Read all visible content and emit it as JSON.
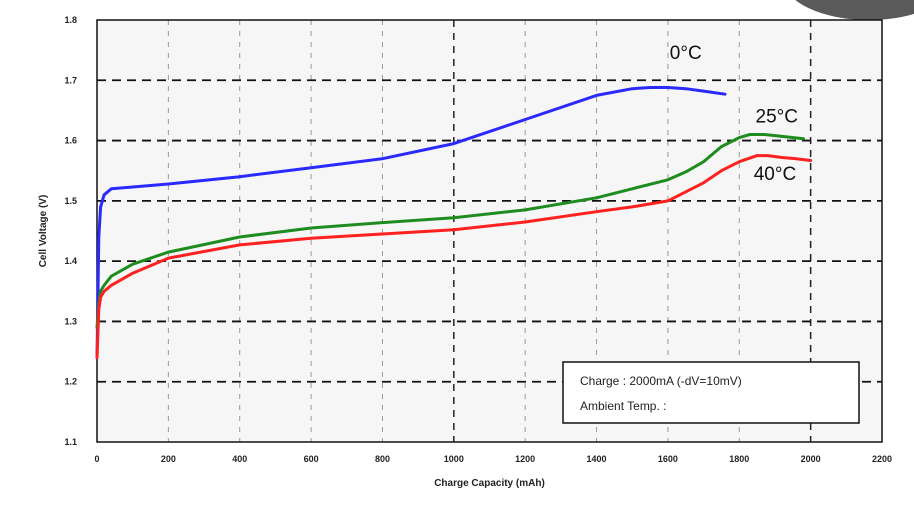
{
  "chart_data": {
    "type": "line",
    "title": "",
    "xlabel": "Charge Capacity (mAh)",
    "ylabel": "Cell Voltage (V)",
    "xlim": [
      0,
      2200
    ],
    "ylim": [
      1.1,
      1.8
    ],
    "x_ticks": [
      "0",
      "200",
      "400",
      "600",
      "800",
      "1000",
      "1200",
      "1400",
      "1600",
      "1800",
      "2000",
      "2200"
    ],
    "y_ticks": [
      "1.1",
      "1.2",
      "1.3",
      "1.4",
      "1.5",
      "1.6",
      "1.7",
      "1.8"
    ],
    "grid": true,
    "series": [
      {
        "name": "0°C",
        "color": "#2a2aff",
        "x": [
          0,
          5,
          10,
          20,
          40,
          100,
          200,
          400,
          600,
          800,
          1000,
          1200,
          1400,
          1500,
          1550,
          1600,
          1650,
          1700,
          1760
        ],
        "y": [
          1.24,
          1.44,
          1.49,
          1.51,
          1.52,
          1.523,
          1.528,
          1.54,
          1.555,
          1.57,
          1.595,
          1.635,
          1.675,
          1.686,
          1.688,
          1.688,
          1.686,
          1.682,
          1.677
        ]
      },
      {
        "name": "25°C",
        "color": "#1e8c1e",
        "x": [
          0,
          5,
          10,
          20,
          40,
          100,
          200,
          400,
          600,
          800,
          1000,
          1200,
          1400,
          1500,
          1600,
          1650,
          1700,
          1750,
          1800,
          1830,
          1870,
          1920,
          1980
        ],
        "y": [
          1.29,
          1.33,
          1.35,
          1.36,
          1.375,
          1.395,
          1.415,
          1.44,
          1.455,
          1.464,
          1.472,
          1.485,
          1.505,
          1.52,
          1.535,
          1.548,
          1.565,
          1.59,
          1.605,
          1.61,
          1.61,
          1.607,
          1.603
        ]
      },
      {
        "name": "40°C",
        "color": "#ff2020",
        "x": [
          0,
          5,
          10,
          20,
          40,
          100,
          200,
          400,
          600,
          800,
          1000,
          1200,
          1400,
          1500,
          1600,
          1650,
          1700,
          1750,
          1800,
          1850,
          1880,
          1920,
          1960,
          2000
        ],
        "y": [
          1.24,
          1.32,
          1.34,
          1.35,
          1.36,
          1.38,
          1.405,
          1.427,
          1.438,
          1.445,
          1.452,
          1.465,
          1.482,
          1.49,
          1.5,
          1.515,
          1.53,
          1.55,
          1.565,
          1.575,
          1.575,
          1.572,
          1.57,
          1.567
        ]
      }
    ],
    "series_labels": [
      {
        "text": "0°C",
        "x": 1650,
        "y": 1.735
      },
      {
        "text": "25°C",
        "x": 1905,
        "y": 1.63
      },
      {
        "text": "40°C",
        "x": 1900,
        "y": 1.535
      }
    ],
    "annotation": {
      "line1": "Charge : 2000mA (-dV=10mV)",
      "line2": "Ambient Temp. :"
    }
  }
}
